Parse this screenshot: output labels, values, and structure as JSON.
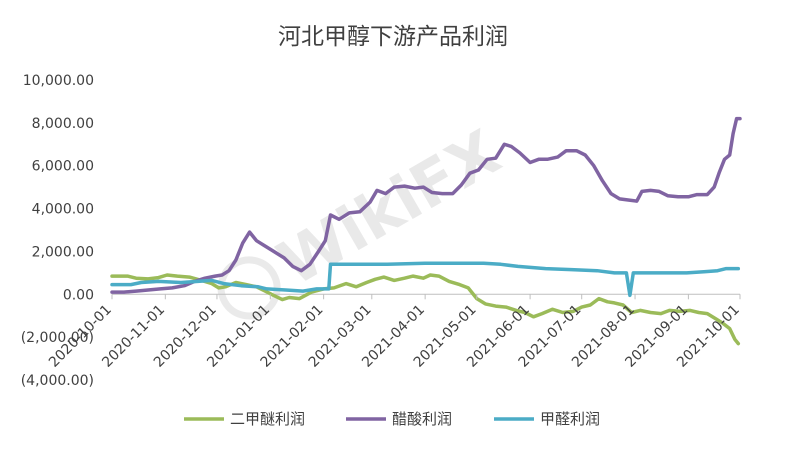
{
  "chart_data": {
    "type": "line",
    "title": "河北甲醇下游产品利润",
    "xlabel": "",
    "ylabel": "",
    "x_tick_labels": [
      "2020-10-01",
      "2020-11-01",
      "2020-12-01",
      "2021-01-01",
      "2021-02-01",
      "2021-03-01",
      "2021-04-01",
      "2021-05-01",
      "2021-06-01",
      "2021-07-01",
      "2021-08-01",
      "2021-09-01",
      "2021-10-01"
    ],
    "y_tick_values": [
      10000,
      8000,
      6000,
      4000,
      2000,
      0,
      -2000,
      -4000
    ],
    "y_tick_labels": [
      "10,000.00",
      "8,000.00",
      "6,000.00",
      "4,000.00",
      "2,000.00",
      "0.00",
      "(2,000.00)",
      "(4,000.00)"
    ],
    "ylim": [
      -4000,
      10000
    ],
    "xlim": [
      "2020-10-01",
      "2021-10-01"
    ],
    "grid": false,
    "legend_position": "bottom",
    "watermark": "WikiFX",
    "series": [
      {
        "name": "二甲醚利润",
        "color": "#9bbb59",
        "points": [
          [
            "2020-10-01",
            850
          ],
          [
            "2020-10-10",
            850
          ],
          [
            "2020-10-15",
            750
          ],
          [
            "2020-10-22",
            720
          ],
          [
            "2020-10-28",
            780
          ],
          [
            "2020-11-02",
            900
          ],
          [
            "2020-11-08",
            850
          ],
          [
            "2020-11-15",
            800
          ],
          [
            "2020-11-22",
            650
          ],
          [
            "2020-11-28",
            500
          ],
          [
            "2020-12-02",
            300
          ],
          [
            "2020-12-06",
            350
          ],
          [
            "2020-12-12",
            550
          ],
          [
            "2020-12-18",
            450
          ],
          [
            "2020-12-24",
            350
          ],
          [
            "2020-12-29",
            150
          ],
          [
            "2021-01-03",
            -50
          ],
          [
            "2021-01-08",
            -250
          ],
          [
            "2021-01-12",
            -150
          ],
          [
            "2021-01-18",
            -200
          ],
          [
            "2021-01-25",
            100
          ],
          [
            "2021-02-01",
            250
          ],
          [
            "2021-02-07",
            300
          ],
          [
            "2021-02-14",
            500
          ],
          [
            "2021-02-20",
            350
          ],
          [
            "2021-02-26",
            550
          ],
          [
            "2021-03-03",
            700
          ],
          [
            "2021-03-08",
            800
          ],
          [
            "2021-03-14",
            650
          ],
          [
            "2021-03-20",
            750
          ],
          [
            "2021-03-25",
            850
          ],
          [
            "2021-03-31",
            750
          ],
          [
            "2021-04-04",
            900
          ],
          [
            "2021-04-09",
            850
          ],
          [
            "2021-04-15",
            600
          ],
          [
            "2021-04-21",
            450
          ],
          [
            "2021-04-26",
            300
          ],
          [
            "2021-05-01",
            -200
          ],
          [
            "2021-05-06",
            -450
          ],
          [
            "2021-05-12",
            -550
          ],
          [
            "2021-05-18",
            -600
          ],
          [
            "2021-05-24",
            -750
          ],
          [
            "2021-05-29",
            -850
          ],
          [
            "2021-06-03",
            -1050
          ],
          [
            "2021-06-08",
            -900
          ],
          [
            "2021-06-14",
            -700
          ],
          [
            "2021-06-20",
            -850
          ],
          [
            "2021-06-26",
            -800
          ],
          [
            "2021-07-01",
            -600
          ],
          [
            "2021-07-06",
            -500
          ],
          [
            "2021-07-11",
            -200
          ],
          [
            "2021-07-16",
            -350
          ],
          [
            "2021-07-20",
            -400
          ],
          [
            "2021-07-25",
            -500
          ],
          [
            "2021-07-30",
            -850
          ],
          [
            "2021-08-04",
            -750
          ],
          [
            "2021-08-10",
            -850
          ],
          [
            "2021-08-16",
            -900
          ],
          [
            "2021-08-21",
            -750
          ],
          [
            "2021-08-27",
            -800
          ],
          [
            "2021-09-02",
            -750
          ],
          [
            "2021-09-07",
            -850
          ],
          [
            "2021-09-12",
            -900
          ],
          [
            "2021-09-17",
            -1150
          ],
          [
            "2021-09-21",
            -1350
          ],
          [
            "2021-09-25",
            -1600
          ],
          [
            "2021-09-28",
            -2100
          ],
          [
            "2021-09-30",
            -2300
          ]
        ]
      },
      {
        "name": "醋酸利润",
        "color": "#8064a2",
        "points": [
          [
            "2020-10-01",
            100
          ],
          [
            "2020-10-08",
            100
          ],
          [
            "2020-10-15",
            150
          ],
          [
            "2020-10-22",
            200
          ],
          [
            "2020-10-29",
            250
          ],
          [
            "2020-11-05",
            300
          ],
          [
            "2020-11-12",
            400
          ],
          [
            "2020-11-18",
            600
          ],
          [
            "2020-11-24",
            750
          ],
          [
            "2020-11-30",
            850
          ],
          [
            "2020-12-04",
            900
          ],
          [
            "2020-12-08",
            1100
          ],
          [
            "2020-12-12",
            1600
          ],
          [
            "2020-12-16",
            2400
          ],
          [
            "2020-12-20",
            2900
          ],
          [
            "2020-12-24",
            2500
          ],
          [
            "2020-12-28",
            2300
          ],
          [
            "2021-01-03",
            2000
          ],
          [
            "2021-01-09",
            1700
          ],
          [
            "2021-01-14",
            1300
          ],
          [
            "2021-01-19",
            1100
          ],
          [
            "2021-01-24",
            1400
          ],
          [
            "2021-01-29",
            2000
          ],
          [
            "2021-02-02",
            2500
          ],
          [
            "2021-02-05",
            3700
          ],
          [
            "2021-02-10",
            3500
          ],
          [
            "2021-02-16",
            3800
          ],
          [
            "2021-02-22",
            3850
          ],
          [
            "2021-02-28",
            4300
          ],
          [
            "2021-03-04",
            4850
          ],
          [
            "2021-03-09",
            4700
          ],
          [
            "2021-03-14",
            5000
          ],
          [
            "2021-03-20",
            5050
          ],
          [
            "2021-03-26",
            4950
          ],
          [
            "2021-03-31",
            5000
          ],
          [
            "2021-04-05",
            4750
          ],
          [
            "2021-04-11",
            4700
          ],
          [
            "2021-04-17",
            4700
          ],
          [
            "2021-04-22",
            5100
          ],
          [
            "2021-04-27",
            5650
          ],
          [
            "2021-05-02",
            5800
          ],
          [
            "2021-05-07",
            6300
          ],
          [
            "2021-05-12",
            6350
          ],
          [
            "2021-05-17",
            7000
          ],
          [
            "2021-05-21",
            6900
          ],
          [
            "2021-05-26",
            6600
          ],
          [
            "2021-06-01",
            6150
          ],
          [
            "2021-06-06",
            6300
          ],
          [
            "2021-06-11",
            6300
          ],
          [
            "2021-06-17",
            6400
          ],
          [
            "2021-06-22",
            6700
          ],
          [
            "2021-06-28",
            6700
          ],
          [
            "2021-07-03",
            6500
          ],
          [
            "2021-07-08",
            6000
          ],
          [
            "2021-07-13",
            5300
          ],
          [
            "2021-07-18",
            4700
          ],
          [
            "2021-07-23",
            4450
          ],
          [
            "2021-07-28",
            4400
          ],
          [
            "2021-08-02",
            4350
          ],
          [
            "2021-08-05",
            4800
          ],
          [
            "2021-08-10",
            4850
          ],
          [
            "2021-08-15",
            4800
          ],
          [
            "2021-08-20",
            4600
          ],
          [
            "2021-08-26",
            4550
          ],
          [
            "2021-09-01",
            4550
          ],
          [
            "2021-09-06",
            4650
          ],
          [
            "2021-09-12",
            4650
          ],
          [
            "2021-09-16",
            5000
          ],
          [
            "2021-09-19",
            5700
          ],
          [
            "2021-09-22",
            6300
          ],
          [
            "2021-09-25",
            6500
          ],
          [
            "2021-09-27",
            7500
          ],
          [
            "2021-09-29",
            8200
          ],
          [
            "2021-10-01",
            8200
          ]
        ]
      },
      {
        "name": "甲醛利润",
        "color": "#4bacc6",
        "points": [
          [
            "2020-10-01",
            450
          ],
          [
            "2020-10-12",
            450
          ],
          [
            "2020-10-18",
            550
          ],
          [
            "2020-10-28",
            600
          ],
          [
            "2020-11-10",
            550
          ],
          [
            "2020-11-20",
            600
          ],
          [
            "2020-11-28",
            650
          ],
          [
            "2020-12-05",
            500
          ],
          [
            "2020-12-15",
            400
          ],
          [
            "2020-12-25",
            350
          ],
          [
            "2020-12-30",
            250
          ],
          [
            "2021-01-10",
            200
          ],
          [
            "2021-01-20",
            150
          ],
          [
            "2021-01-28",
            250
          ],
          [
            "2021-02-04",
            250
          ],
          [
            "2021-02-05",
            1400
          ],
          [
            "2021-02-20",
            1400
          ],
          [
            "2021-03-10",
            1400
          ],
          [
            "2021-04-01",
            1450
          ],
          [
            "2021-04-20",
            1450
          ],
          [
            "2021-05-05",
            1450
          ],
          [
            "2021-05-15",
            1400
          ],
          [
            "2021-05-25",
            1300
          ],
          [
            "2021-06-10",
            1200
          ],
          [
            "2021-06-25",
            1150
          ],
          [
            "2021-07-10",
            1100
          ],
          [
            "2021-07-20",
            1000
          ],
          [
            "2021-07-27",
            1000
          ],
          [
            "2021-07-29",
            -50
          ],
          [
            "2021-07-31",
            1000
          ],
          [
            "2021-08-15",
            1000
          ],
          [
            "2021-08-31",
            1000
          ],
          [
            "2021-09-10",
            1050
          ],
          [
            "2021-09-18",
            1100
          ],
          [
            "2021-09-23",
            1200
          ],
          [
            "2021-09-30",
            1200
          ]
        ]
      }
    ]
  }
}
